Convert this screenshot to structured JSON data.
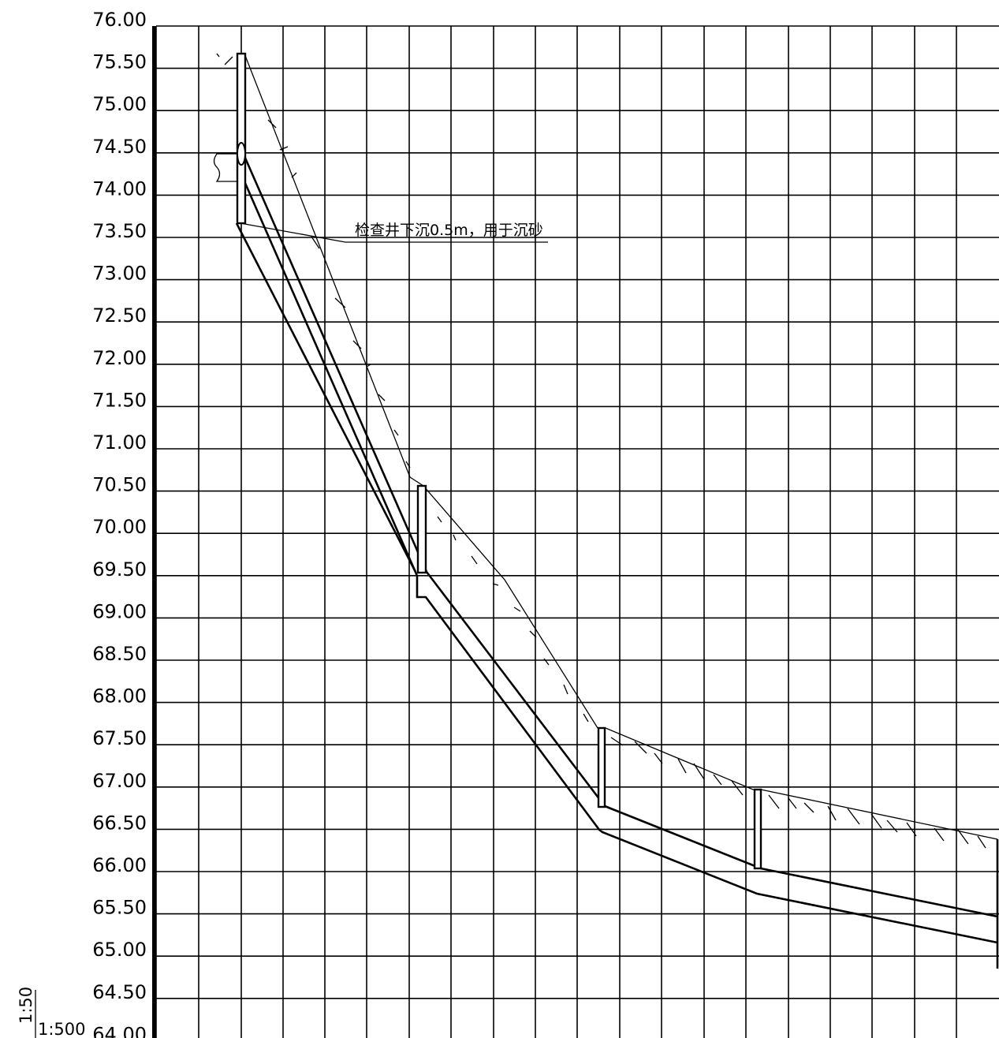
{
  "profile": {
    "elevation_labels": [
      "76.00",
      "75.50",
      "75.00",
      "74.50",
      "74.00",
      "73.50",
      "73.00",
      "72.50",
      "72.00",
      "71.50",
      "71.00",
      "70.50",
      "70.00",
      "69.50",
      "69.00",
      "68.50",
      "68.00",
      "67.50",
      "67.00",
      "66.50",
      "66.00",
      "65.50",
      "65.00",
      "64.50",
      "64.00"
    ],
    "annotation": "检查井下沉0.5m，用于沉砂",
    "scale_vertical": "1:50",
    "scale_horizontal": "1:500"
  }
}
